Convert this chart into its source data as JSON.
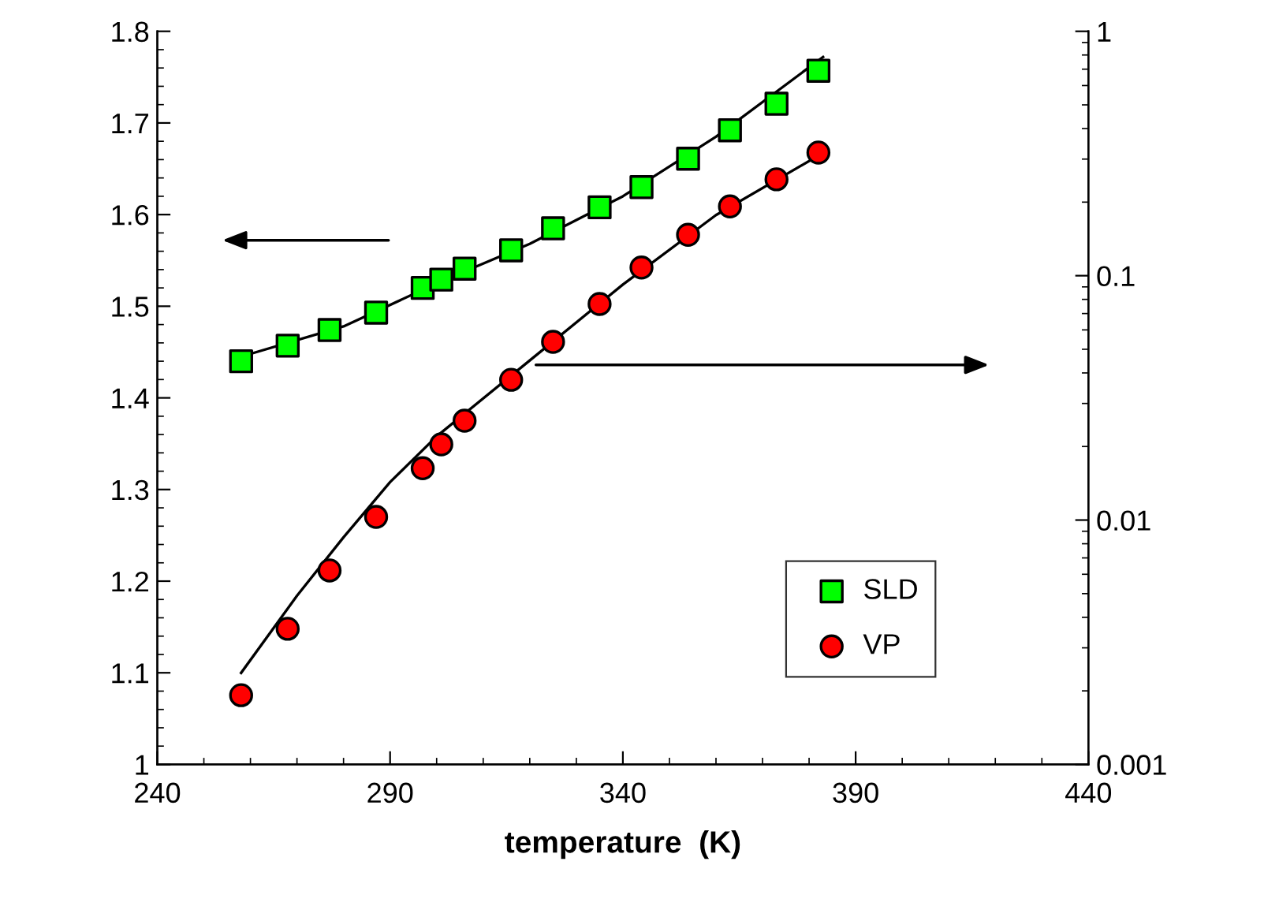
{
  "chart_data": {
    "type": "scatter",
    "xlabel": "temperature  (K)",
    "xlim": [
      240,
      440
    ],
    "xticks": [
      240,
      290,
      340,
      390,
      440
    ],
    "ylim": [
      1,
      1.8
    ],
    "yticks": [
      1,
      1.1,
      1.2,
      1.3,
      1.4,
      1.5,
      1.6,
      1.7,
      1.8
    ],
    "y2lim": [
      0.001,
      1
    ],
    "y2ticks": [
      0.001,
      0.01,
      0.1,
      1
    ],
    "log": "y2",
    "grid": false,
    "legend": "bottom right",
    "series": [
      {
        "name": "SLD",
        "color": "#00ff00",
        "marker": "square",
        "x": [
          258,
          268,
          277,
          287,
          297,
          301,
          306,
          316,
          325,
          335,
          344,
          354,
          363,
          373,
          382
        ],
        "values": [
          1.44,
          1.457,
          1.474,
          1.493,
          1.52,
          1.529,
          1.541,
          1.561,
          1.585,
          1.608,
          1.63,
          1.661,
          1.692,
          1.721,
          1.757
        ]
      },
      {
        "name": "VP",
        "color": "#ff0000",
        "marker": "circle",
        "axis": "y2",
        "x": [
          258,
          268,
          277,
          287,
          297,
          301,
          306,
          316,
          325,
          335,
          344,
          354,
          363,
          373,
          382
        ],
        "values": [
          0.00192,
          0.00359,
          0.00622,
          0.0103,
          0.0163,
          0.0204,
          0.0255,
          0.0375,
          0.0536,
          0.0766,
          0.108,
          0.147,
          0.192,
          0.248,
          0.319
        ]
      },
      {
        "type": "line",
        "color": "#000000",
        "marker": "none",
        "x": [
          258,
          280,
          300,
          320,
          340,
          360,
          383
        ],
        "values": [
          1.445,
          1.478,
          1.525,
          1.568,
          1.62,
          1.685,
          1.772
        ]
      },
      {
        "type": "line",
        "color": "#000000",
        "marker": "none",
        "axis": "y2",
        "x": [
          258,
          270,
          280,
          290,
          300,
          320,
          340,
          360,
          382
        ],
        "values": [
          0.00237,
          0.0049,
          0.0085,
          0.0143,
          0.022,
          0.045,
          0.092,
          0.177,
          0.31
        ]
      }
    ]
  }
}
